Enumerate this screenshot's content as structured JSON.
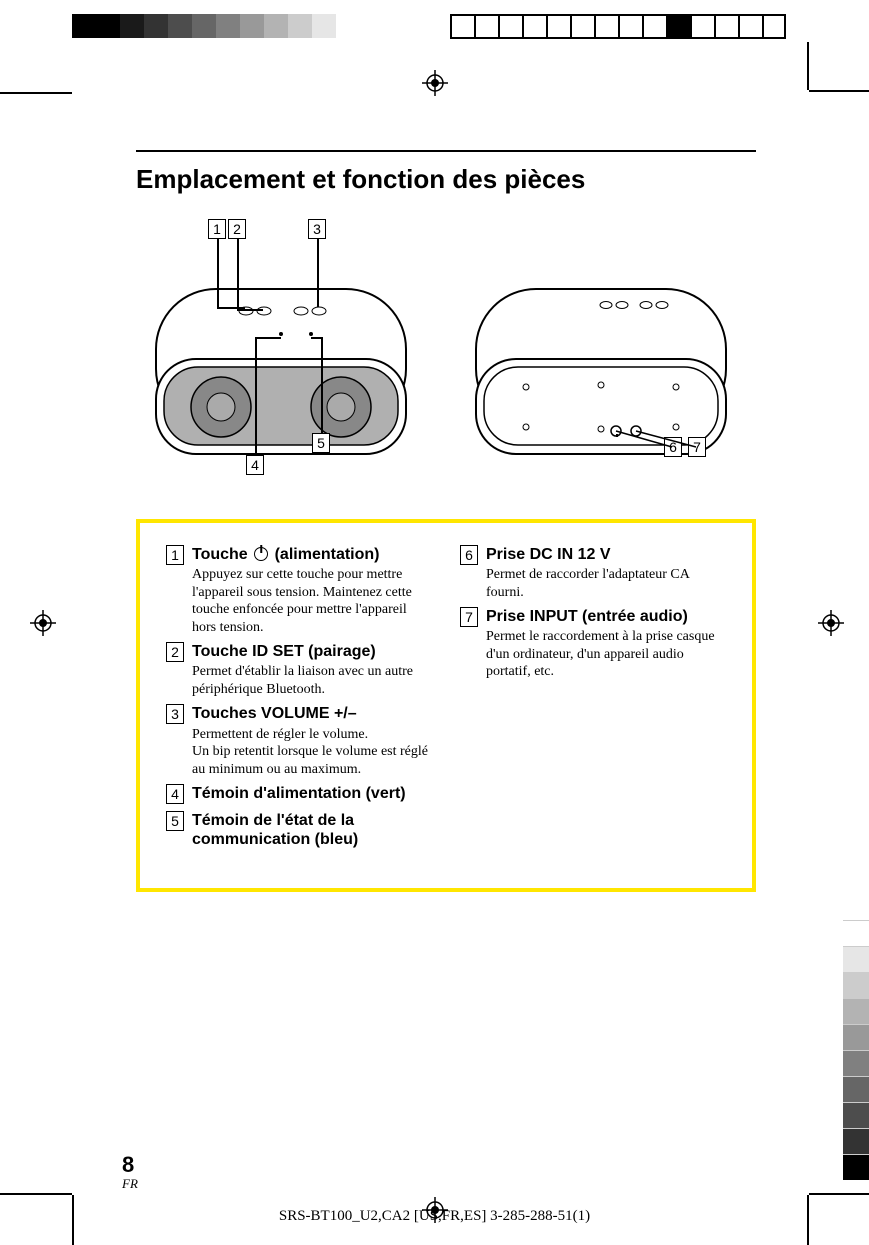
{
  "title": "Emplacement et fonction des pièces",
  "page_number": "8",
  "lang": "FR",
  "doc_id": "SRS-BT100_U2,CA2 [US,FR,ES] 3-285-288-51(1)",
  "callouts_top": [
    "1",
    "2",
    "3"
  ],
  "callouts_bottom_left": [
    "4",
    "5"
  ],
  "callouts_bottom_right": [
    "6",
    "7"
  ],
  "yellow_border_color": "#ffe600",
  "left_col": [
    {
      "n": "1",
      "title_pre": "Touche ",
      "title_post": " (alimentation)",
      "has_power_icon": true,
      "desc": "Appuyez sur cette touche pour mettre l'appareil sous tension. Maintenez cette touche enfoncée pour mettre l'appareil hors tension."
    },
    {
      "n": "2",
      "title": "Touche ID SET (pairage)",
      "desc": "Permet d'établir la liaison avec un autre périphérique Bluetooth."
    },
    {
      "n": "3",
      "title": "Touches VOLUME +/–",
      "desc": "Permettent de régler le volume.\nUn bip retentit lorsque le volume est réglé au minimum ou au maximum."
    },
    {
      "n": "4",
      "title": "Témoin d'alimentation (vert)",
      "desc": ""
    },
    {
      "n": "5",
      "title": "Témoin de l'état de la communication (bleu)",
      "desc": ""
    }
  ],
  "right_col": [
    {
      "n": "6",
      "title": "Prise DC IN 12 V",
      "desc": "Permet de raccorder l'adaptateur CA fourni."
    },
    {
      "n": "7",
      "title": "Prise INPUT (entrée audio)",
      "desc": "Permet le raccordement à la prise casque d'un ordinateur, d'un appareil audio portatif, etc."
    }
  ],
  "grayscale": [
    "#000000",
    "#000000",
    "#1a1a1a",
    "#333333",
    "#4d4d4d",
    "#666666",
    "#808080",
    "#999999",
    "#b3b3b3",
    "#cccccc",
    "#e6e6e6",
    "#ffffff",
    "#ffffff"
  ],
  "side_grays": [
    "#ffffff",
    "#e6e6e6",
    "#cccccc",
    "#b3b3b3",
    "#999999",
    "#808080",
    "#666666",
    "#4d4d4d",
    "#333333",
    "#000000"
  ]
}
